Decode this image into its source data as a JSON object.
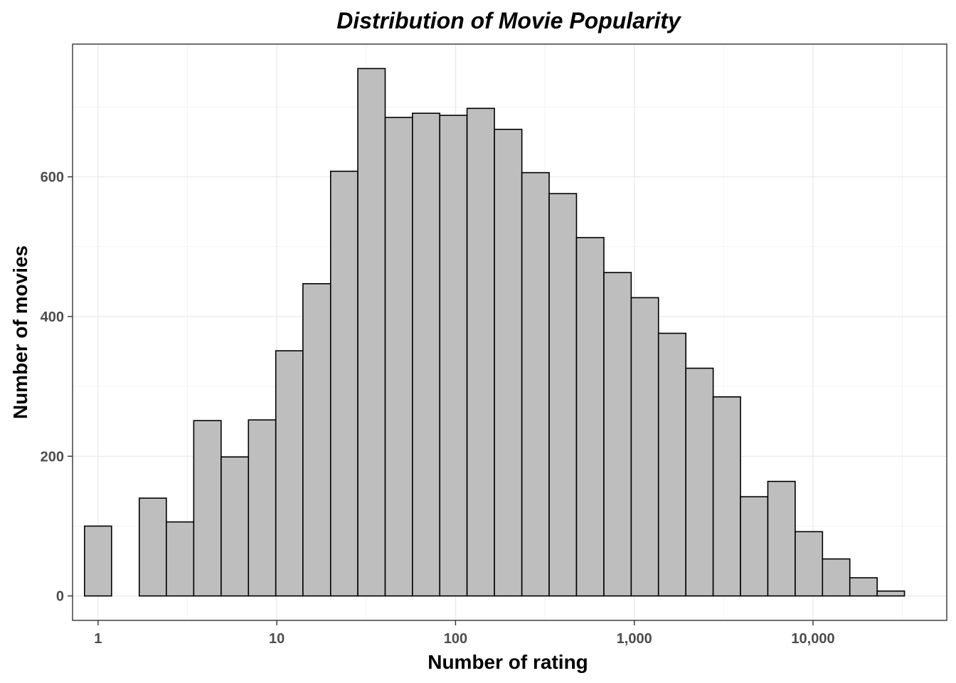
{
  "chart_data": {
    "type": "bar",
    "title": "Distribution of Movie Popularity",
    "xlabel": "Number of rating",
    "ylabel": "Number of movies",
    "x_scale": "log10",
    "xlim": [
      0.72,
      56000
    ],
    "ylim": [
      -35,
      790
    ],
    "x_ticks": [
      {
        "value": 1,
        "label": "1"
      },
      {
        "value": 10,
        "label": "10"
      },
      {
        "value": 100,
        "label": "100"
      },
      {
        "value": 1000,
        "label": "1,000"
      },
      {
        "value": 10000,
        "label": "10,000"
      }
    ],
    "y_ticks": [
      {
        "value": 0,
        "label": "0"
      },
      {
        "value": 200,
        "label": "200"
      },
      {
        "value": 400,
        "label": "400"
      },
      {
        "value": 600,
        "label": "600"
      }
    ],
    "bins": [
      {
        "x_start": 0.84,
        "x_end": 1.19,
        "count": 100
      },
      {
        "x_start": 1.19,
        "x_end": 1.7,
        "count": 0
      },
      {
        "x_start": 1.7,
        "x_end": 2.41,
        "count": 140
      },
      {
        "x_start": 2.41,
        "x_end": 3.43,
        "count": 106
      },
      {
        "x_start": 3.43,
        "x_end": 4.88,
        "count": 251
      },
      {
        "x_start": 4.88,
        "x_end": 6.94,
        "count": 199
      },
      {
        "x_start": 6.94,
        "x_end": 9.87,
        "count": 252
      },
      {
        "x_start": 9.87,
        "x_end": 14.0,
        "count": 351
      },
      {
        "x_start": 14.0,
        "x_end": 20.0,
        "count": 447
      },
      {
        "x_start": 20.0,
        "x_end": 28.4,
        "count": 608
      },
      {
        "x_start": 28.4,
        "x_end": 40.4,
        "count": 755
      },
      {
        "x_start": 40.4,
        "x_end": 57.4,
        "count": 685
      },
      {
        "x_start": 57.4,
        "x_end": 81.6,
        "count": 691
      },
      {
        "x_start": 81.6,
        "x_end": 116,
        "count": 688
      },
      {
        "x_start": 116,
        "x_end": 165,
        "count": 698
      },
      {
        "x_start": 165,
        "x_end": 235,
        "count": 668
      },
      {
        "x_start": 235,
        "x_end": 334,
        "count": 606
      },
      {
        "x_start": 334,
        "x_end": 475,
        "count": 576
      },
      {
        "x_start": 475,
        "x_end": 676,
        "count": 513
      },
      {
        "x_start": 676,
        "x_end": 961,
        "count": 463
      },
      {
        "x_start": 961,
        "x_end": 1366,
        "count": 427
      },
      {
        "x_start": 1366,
        "x_end": 1943,
        "count": 376
      },
      {
        "x_start": 1943,
        "x_end": 2763,
        "count": 326
      },
      {
        "x_start": 2763,
        "x_end": 3929,
        "count": 285
      },
      {
        "x_start": 3929,
        "x_end": 5587,
        "count": 142
      },
      {
        "x_start": 5587,
        "x_end": 7945,
        "count": 164
      },
      {
        "x_start": 7945,
        "x_end": 11298,
        "count": 92
      },
      {
        "x_start": 11298,
        "x_end": 16066,
        "count": 53
      },
      {
        "x_start": 16066,
        "x_end": 22846,
        "count": 26
      },
      {
        "x_start": 22846,
        "x_end": 32487,
        "count": 7
      }
    ],
    "grid": true,
    "legend": "none",
    "colors": {
      "bar_fill": "#bebebe",
      "bar_outline": "#000000",
      "grid": "#ebebeb",
      "panel_border": "#333333"
    }
  }
}
